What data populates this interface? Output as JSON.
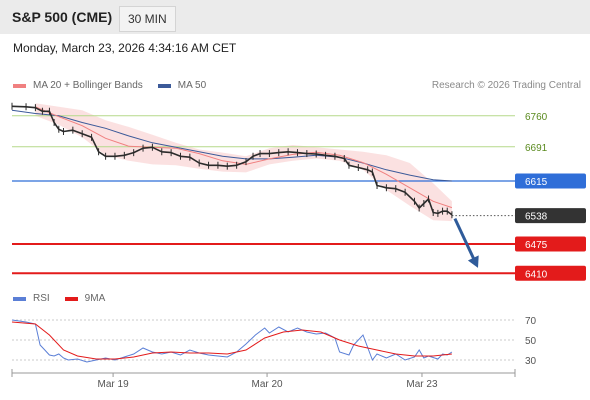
{
  "header": {
    "title": "S&P 500 (CME)",
    "timeframe": "30 MIN"
  },
  "timestamp": "Monday, March 23, 2026 4:34:16 AM CET",
  "copyright": "Research © 2026 Trading Central",
  "colors": {
    "ma20": "#f08080",
    "ma50": "#3c5a99",
    "bollinger": "#f9d7d7",
    "resistance": "#b5d98a",
    "pivot": "#2f6ed8",
    "support": "#e31b1b",
    "current": "#333333",
    "arrow": "#2f5b9a",
    "rsi": "#5b7fd6",
    "ma9": "#e31b1b"
  },
  "chart_data": [
    {
      "type": "line",
      "legend": [
        {
          "name": "MA 20 + Bollinger Bands",
          "color": "#f08080"
        },
        {
          "name": "MA 50",
          "color": "#3c5a99"
        }
      ],
      "ylim": [
        6395,
        6795
      ],
      "xlim": [
        0,
        100
      ],
      "x_ticks": [
        {
          "x": 21.6,
          "label": "Mar 19"
        },
        {
          "x": 54.5,
          "label": "Mar 20"
        },
        {
          "x": 87.6,
          "label": "Mar 23"
        }
      ],
      "levels": [
        {
          "value": 6760,
          "label": "6760",
          "kind": "resistance"
        },
        {
          "value": 6691,
          "label": "6691",
          "kind": "resistance"
        },
        {
          "value": 6615,
          "label": "6615",
          "kind": "pivot"
        },
        {
          "value": 6538,
          "label": "6538",
          "kind": "current"
        },
        {
          "value": 6475,
          "label": "6475",
          "kind": "support"
        },
        {
          "value": 6410,
          "label": "6410",
          "kind": "support"
        }
      ],
      "price_close": [
        [
          0,
          6781
        ],
        [
          3,
          6780
        ],
        [
          5,
          6778
        ],
        [
          6.5,
          6770
        ],
        [
          8,
          6770
        ],
        [
          9,
          6745
        ],
        [
          10,
          6730
        ],
        [
          11,
          6725
        ],
        [
          13,
          6728
        ],
        [
          15,
          6720
        ],
        [
          17,
          6712
        ],
        [
          18.5,
          6680
        ],
        [
          20,
          6670
        ],
        [
          22,
          6670
        ],
        [
          24,
          6672
        ],
        [
          26,
          6678
        ],
        [
          28,
          6688
        ],
        [
          30,
          6690
        ],
        [
          32,
          6680
        ],
        [
          34,
          6678
        ],
        [
          36,
          6670
        ],
        [
          38,
          6668
        ],
        [
          40,
          6655
        ],
        [
          42,
          6650
        ],
        [
          44,
          6650
        ],
        [
          46,
          6648
        ],
        [
          48,
          6650
        ],
        [
          50,
          6658
        ],
        [
          51.5,
          6670
        ],
        [
          53,
          6676
        ],
        [
          55,
          6676
        ],
        [
          57,
          6678
        ],
        [
          59,
          6680
        ],
        [
          61,
          6678
        ],
        [
          63,
          6676
        ],
        [
          65,
          6675
        ],
        [
          67,
          6672
        ],
        [
          69,
          6670
        ],
        [
          71,
          6665
        ],
        [
          72,
          6650
        ],
        [
          74,
          6645
        ],
        [
          76,
          6640
        ],
        [
          77,
          6635
        ],
        [
          78,
          6605
        ],
        [
          80,
          6600
        ],
        [
          82,
          6598
        ],
        [
          84,
          6590
        ],
        [
          86,
          6570
        ],
        [
          87,
          6555
        ],
        [
          88,
          6565
        ],
        [
          89,
          6575
        ],
        [
          90,
          6545
        ],
        [
          91,
          6543
        ],
        [
          92,
          6548
        ],
        [
          93,
          6548
        ],
        [
          94,
          6540
        ]
      ],
      "ma20": [
        [
          5,
          6780
        ],
        [
          10,
          6758
        ],
        [
          15,
          6738
        ],
        [
          20,
          6710
        ],
        [
          25,
          6692
        ],
        [
          30,
          6690
        ],
        [
          35,
          6688
        ],
        [
          40,
          6676
        ],
        [
          45,
          6660
        ],
        [
          50,
          6652
        ],
        [
          55,
          6664
        ],
        [
          60,
          6674
        ],
        [
          65,
          6679
        ],
        [
          70,
          6672
        ],
        [
          75,
          6656
        ],
        [
          80,
          6630
        ],
        [
          85,
          6600
        ],
        [
          90,
          6570
        ],
        [
          94,
          6556
        ]
      ],
      "ma50": [
        [
          0,
          6772
        ],
        [
          5,
          6765
        ],
        [
          10,
          6760
        ],
        [
          15,
          6745
        ],
        [
          20,
          6732
        ],
        [
          25,
          6715
        ],
        [
          30,
          6700
        ],
        [
          35,
          6690
        ],
        [
          40,
          6680
        ],
        [
          45,
          6670
        ],
        [
          50,
          6664
        ],
        [
          55,
          6664
        ],
        [
          60,
          6668
        ],
        [
          65,
          6672
        ],
        [
          70,
          6668
        ],
        [
          75,
          6655
        ],
        [
          80,
          6640
        ],
        [
          85,
          6628
        ],
        [
          90,
          6618
        ],
        [
          94,
          6615
        ]
      ],
      "bollinger_upper": [
        [
          5,
          6788
        ],
        [
          10,
          6780
        ],
        [
          15,
          6772
        ],
        [
          20,
          6750
        ],
        [
          25,
          6735
        ],
        [
          30,
          6718
        ],
        [
          35,
          6700
        ],
        [
          40,
          6685
        ],
        [
          45,
          6678
        ],
        [
          50,
          6670
        ],
        [
          55,
          6688
        ],
        [
          60,
          6695
        ],
        [
          65,
          6690
        ],
        [
          70,
          6685
        ],
        [
          75,
          6680
        ],
        [
          80,
          6672
        ],
        [
          85,
          6655
        ],
        [
          90,
          6610
        ],
        [
          94,
          6570
        ]
      ],
      "bollinger_lower": [
        [
          5,
          6760
        ],
        [
          10,
          6740
        ],
        [
          15,
          6712
        ],
        [
          20,
          6672
        ],
        [
          25,
          6660
        ],
        [
          30,
          6652
        ],
        [
          35,
          6650
        ],
        [
          40,
          6642
        ],
        [
          45,
          6636
        ],
        [
          50,
          6634
        ],
        [
          55,
          6652
        ],
        [
          60,
          6660
        ],
        [
          65,
          6665
        ],
        [
          70,
          6660
        ],
        [
          75,
          6640
        ],
        [
          80,
          6595
        ],
        [
          85,
          6560
        ],
        [
          90,
          6528
        ],
        [
          94,
          6526
        ]
      ],
      "projection": [
        [
          94,
          6538
        ],
        [
          99.2,
          6430
        ]
      ]
    },
    {
      "type": "line",
      "legend": [
        {
          "name": "RSI",
          "color": "#5b7fd6"
        },
        {
          "name": "9MA",
          "color": "#e31b1b"
        }
      ],
      "ylim": [
        20,
        80
      ],
      "xlim": [
        0,
        100
      ],
      "y_ticks": [
        {
          "value": 70,
          "label": "70"
        },
        {
          "value": 50,
          "label": "50"
        },
        {
          "value": 30,
          "label": "30"
        }
      ],
      "rsi": [
        [
          0,
          70
        ],
        [
          3,
          68
        ],
        [
          5,
          66
        ],
        [
          6,
          45
        ],
        [
          7,
          40
        ],
        [
          8,
          35
        ],
        [
          9,
          34
        ],
        [
          10,
          36
        ],
        [
          11,
          32
        ],
        [
          12,
          30
        ],
        [
          14,
          31
        ],
        [
          16,
          28
        ],
        [
          18,
          30
        ],
        [
          20,
          32
        ],
        [
          22,
          30
        ],
        [
          24,
          33
        ],
        [
          26,
          36
        ],
        [
          28,
          42
        ],
        [
          30,
          38
        ],
        [
          32,
          36
        ],
        [
          34,
          38
        ],
        [
          36,
          35
        ],
        [
          38,
          40
        ],
        [
          40,
          37
        ],
        [
          42,
          35
        ],
        [
          44,
          34
        ],
        [
          46,
          33
        ],
        [
          48,
          38
        ],
        [
          50,
          46
        ],
        [
          52,
          55
        ],
        [
          54,
          62
        ],
        [
          55,
          57
        ],
        [
          57,
          63
        ],
        [
          59,
          58
        ],
        [
          61,
          62
        ],
        [
          63,
          58
        ],
        [
          65,
          56
        ],
        [
          67,
          57
        ],
        [
          69,
          52
        ],
        [
          70,
          38
        ],
        [
          72,
          35
        ],
        [
          73,
          45
        ],
        [
          75,
          55
        ],
        [
          77,
          30
        ],
        [
          78,
          36
        ],
        [
          80,
          32
        ],
        [
          82,
          36
        ],
        [
          84,
          30
        ],
        [
          86,
          33
        ],
        [
          87,
          40
        ],
        [
          88,
          32
        ],
        [
          89,
          34
        ],
        [
          91,
          31
        ],
        [
          92,
          36
        ],
        [
          93,
          35
        ],
        [
          94,
          38
        ]
      ],
      "ma9": [
        [
          0,
          68
        ],
        [
          5,
          66
        ],
        [
          8,
          55
        ],
        [
          11,
          40
        ],
        [
          14,
          34
        ],
        [
          18,
          31
        ],
        [
          22,
          31
        ],
        [
          26,
          33
        ],
        [
          30,
          37
        ],
        [
          34,
          38
        ],
        [
          38,
          37
        ],
        [
          42,
          37
        ],
        [
          46,
          36
        ],
        [
          50,
          40
        ],
        [
          54,
          52
        ],
        [
          58,
          58
        ],
        [
          62,
          60
        ],
        [
          66,
          58
        ],
        [
          70,
          50
        ],
        [
          74,
          44
        ],
        [
          78,
          40
        ],
        [
          82,
          36
        ],
        [
          86,
          34
        ],
        [
          90,
          34
        ],
        [
          94,
          36
        ]
      ]
    }
  ]
}
